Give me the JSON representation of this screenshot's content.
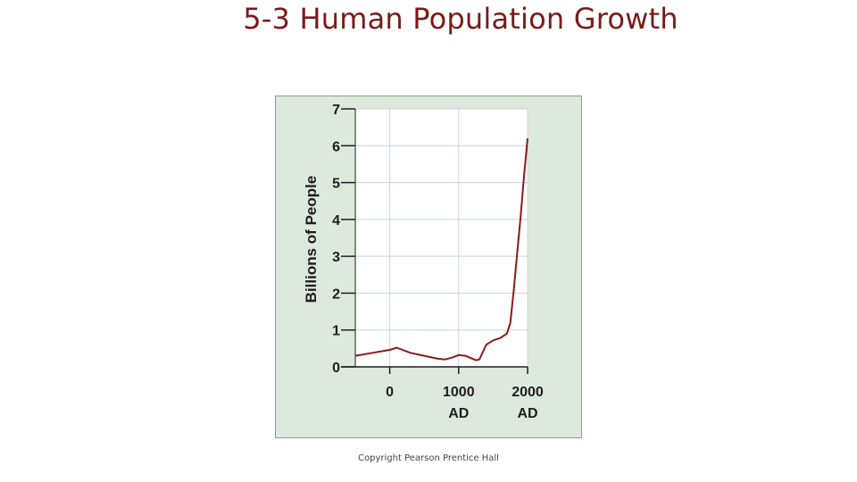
{
  "slide": {
    "title": "5-3 Human Population Growth",
    "footer": "Copyright Pearson Prentice Hall"
  },
  "chart_data": {
    "type": "line",
    "title": "",
    "ylabel": "Billions of People",
    "xlabel": "",
    "ylim": [
      0,
      7
    ],
    "xlim": [
      -500,
      2000
    ],
    "grid": true,
    "yticks": [
      0,
      1,
      2,
      3,
      4,
      5,
      6,
      7
    ],
    "xticks": [
      {
        "value": 0,
        "label": "0",
        "sublabel": ""
      },
      {
        "value": 1000,
        "label": "1000",
        "sublabel": "AD"
      },
      {
        "value": 2000,
        "label": "2000",
        "sublabel": "AD"
      }
    ],
    "series": [
      {
        "color": "#8b1a1a",
        "x": [
          -500,
          -250,
          0,
          100,
          300,
          500,
          700,
          800,
          900,
          1000,
          1100,
          1200,
          1250,
          1300,
          1350,
          1400,
          1500,
          1600,
          1700,
          1750,
          1800,
          1850,
          1900,
          1950,
          2000
        ],
        "y": [
          0.3,
          0.38,
          0.46,
          0.52,
          0.38,
          0.3,
          0.22,
          0.2,
          0.25,
          0.32,
          0.3,
          0.22,
          0.18,
          0.2,
          0.4,
          0.6,
          0.72,
          0.78,
          0.9,
          1.2,
          2.1,
          3.1,
          4.1,
          5.2,
          6.2
        ]
      }
    ],
    "colors": {
      "panel_background": "#dde9dc",
      "plot_background": "#ffffff",
      "grid": "#c5d4e4",
      "title": "#7a1a1a"
    }
  }
}
